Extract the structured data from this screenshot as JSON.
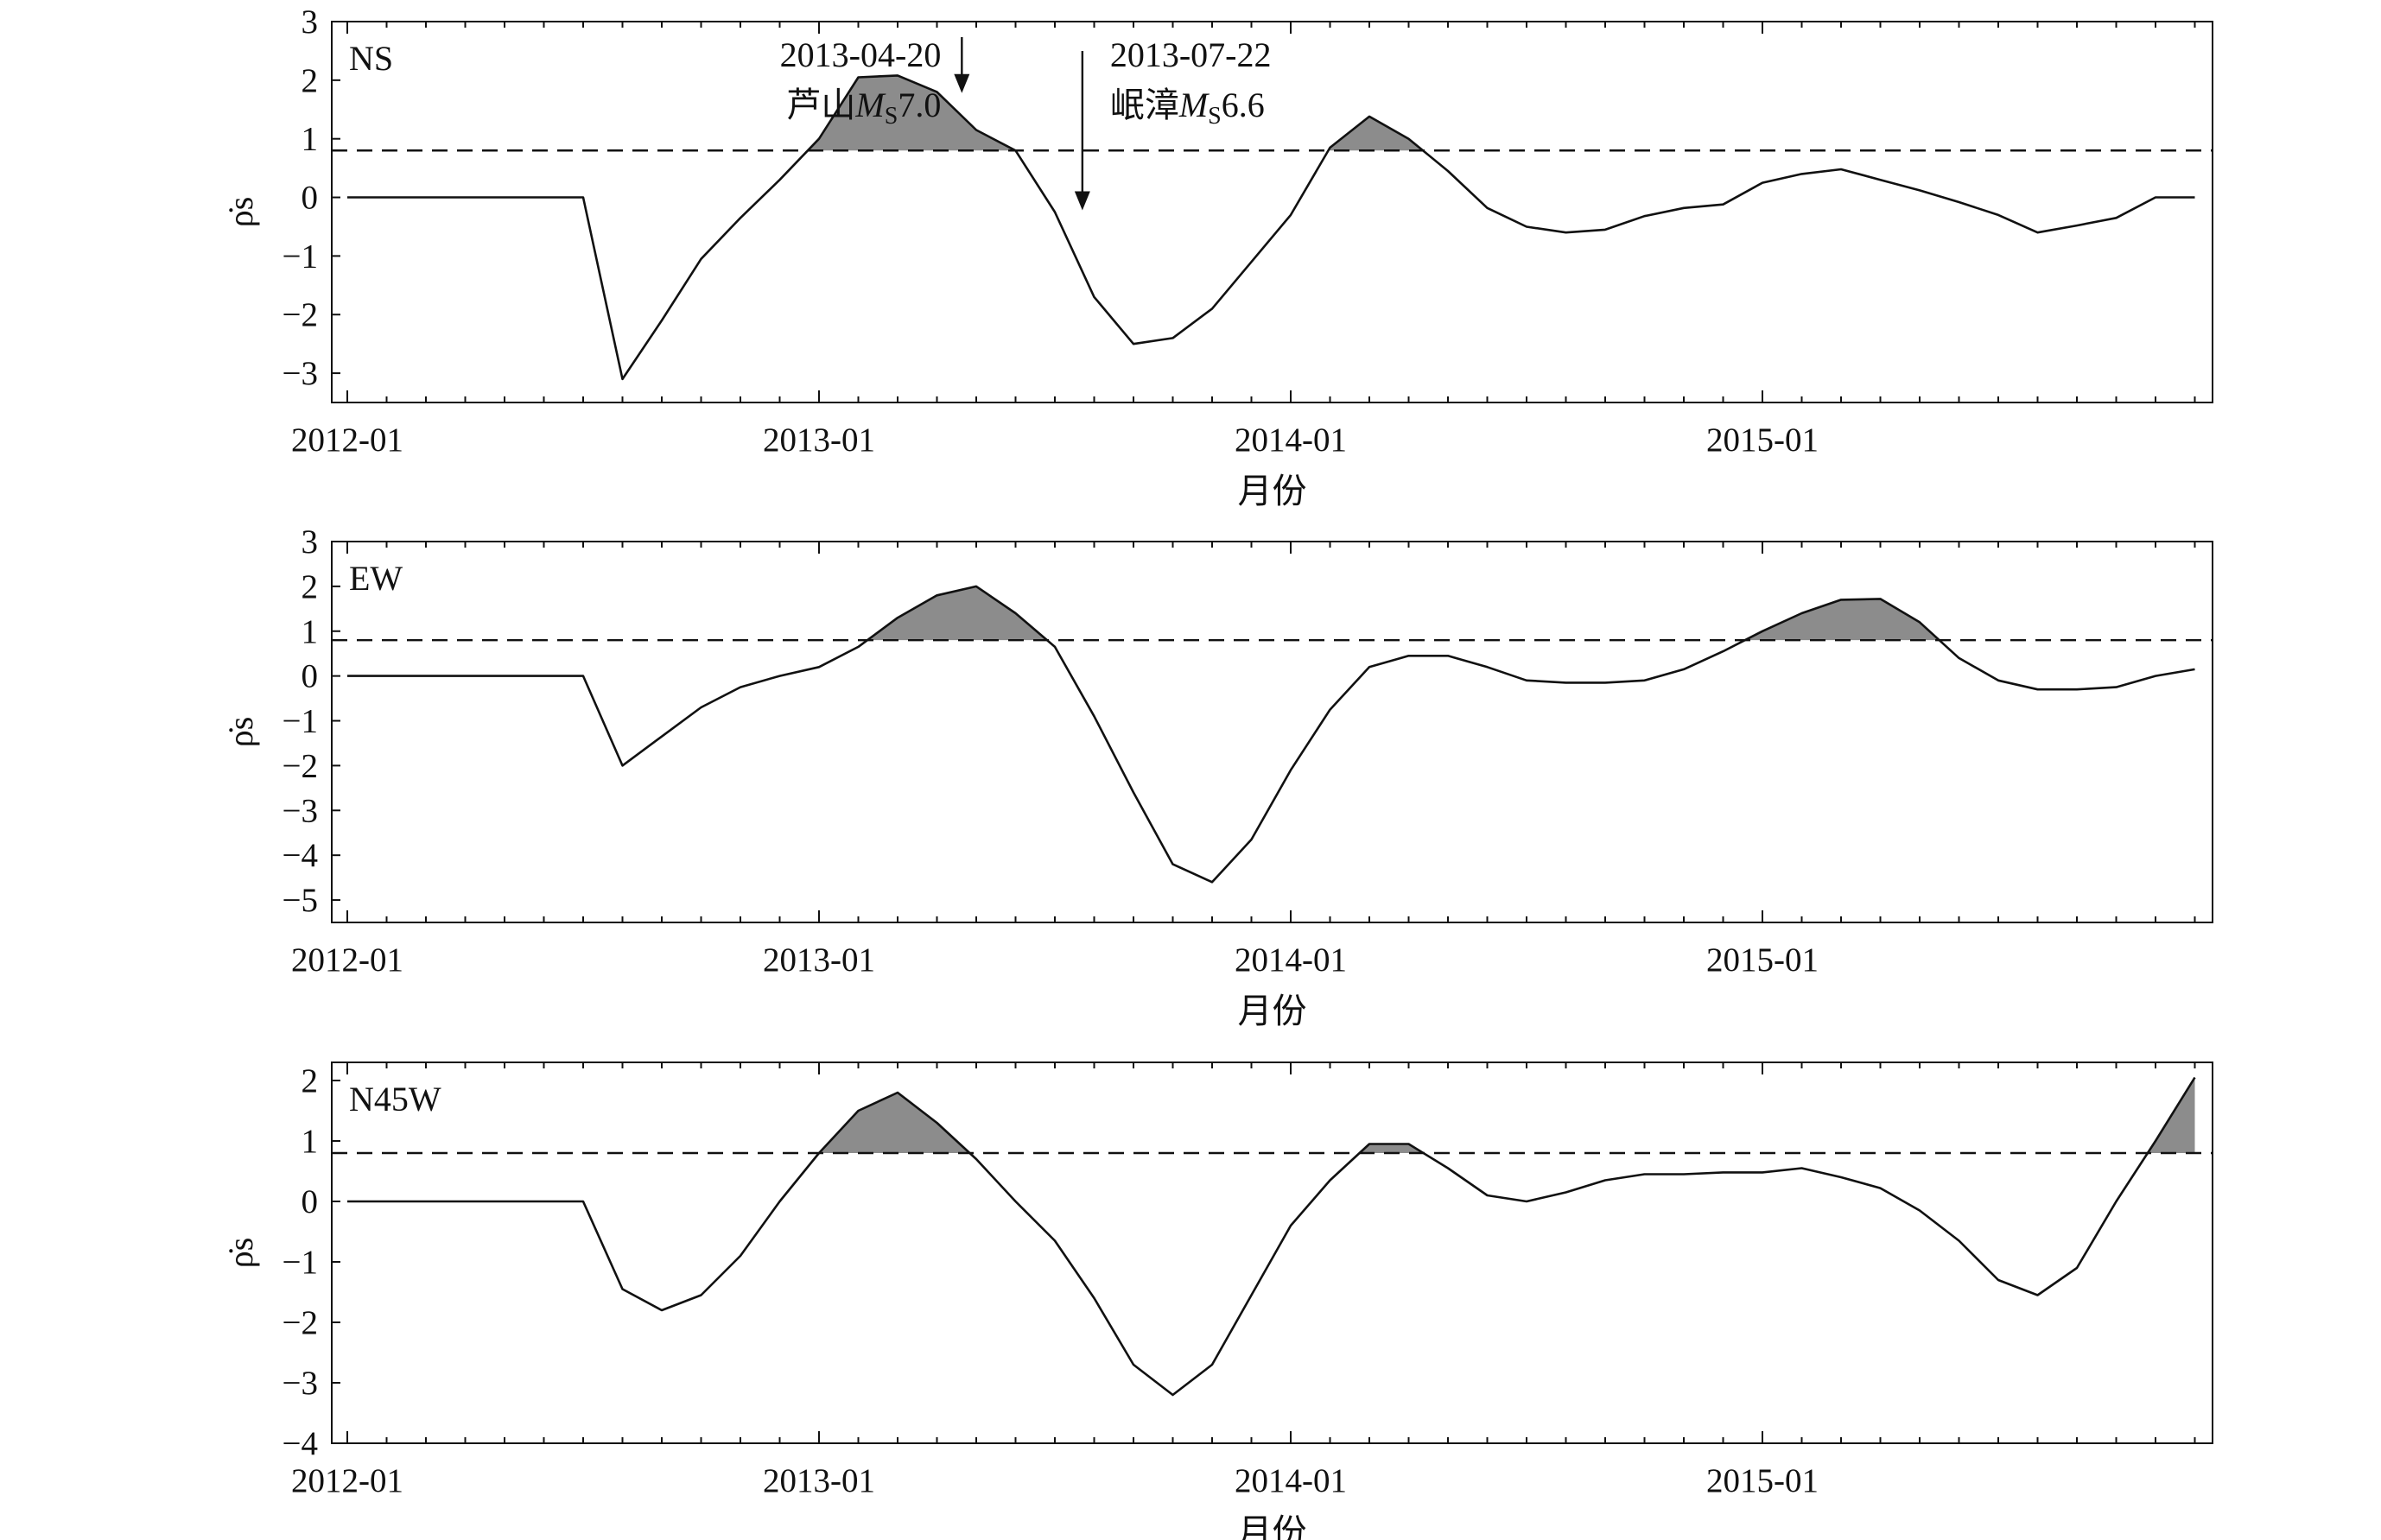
{
  "chart_data": [
    {
      "type": "line",
      "panel_label": "NS",
      "threshold": 0.8,
      "fill_above_threshold": true,
      "ylim": [
        -3.5,
        3.0
      ],
      "yticks": [
        -3,
        -2,
        -1,
        0,
        1,
        2,
        3
      ],
      "ylabel": "ρ̇s",
      "xlabel": "月份",
      "xticks": [
        "2012-01",
        "2013-01",
        "2014-01",
        "2015-01"
      ],
      "x": [
        "2012-01",
        "2012-02",
        "2012-03",
        "2012-04",
        "2012-05",
        "2012-06",
        "2012-07",
        "2012-08",
        "2012-09",
        "2012-10",
        "2012-11",
        "2012-12",
        "2013-01",
        "2013-02",
        "2013-03",
        "2013-04",
        "2013-05",
        "2013-06",
        "2013-07",
        "2013-08",
        "2013-09",
        "2013-10",
        "2013-11",
        "2013-12",
        "2014-01",
        "2014-02",
        "2014-03",
        "2014-04",
        "2014-05",
        "2014-06",
        "2014-07",
        "2014-08",
        "2014-09",
        "2014-10",
        "2014-11",
        "2014-12",
        "2015-01",
        "2015-02",
        "2015-03",
        "2015-04",
        "2015-05",
        "2015-06",
        "2015-07",
        "2015-08",
        "2015-09",
        "2015-10",
        "2015-11",
        "2015-12"
      ],
      "values": [
        0,
        0,
        0,
        0,
        0,
        0,
        0,
        -3.1,
        -2.1,
        -1.05,
        -0.35,
        0.3,
        1.0,
        2.05,
        2.08,
        1.8,
        1.15,
        0.8,
        -0.25,
        -1.7,
        -2.5,
        -2.4,
        -1.9,
        -1.1,
        -0.3,
        0.85,
        1.38,
        1.0,
        0.45,
        -0.18,
        -0.5,
        -0.6,
        -0.55,
        -0.32,
        -0.18,
        -0.12,
        0.25,
        0.4,
        0.48,
        0.3,
        0.12,
        -0.08,
        -0.3,
        -0.6,
        -0.48,
        -0.35,
        0.0,
        0.0
      ],
      "annotations": [
        {
          "line1": "2013-04-20",
          "line2_prefix": "芦山",
          "magnitude_symbol": "M",
          "magnitude_sub": "S",
          "magnitude_value": "7.0",
          "date": "2013-04-20",
          "y": 1.75
        },
        {
          "line1": "2013-07-22",
          "line2_prefix": "岷漳",
          "magnitude_symbol": "M",
          "magnitude_sub": "S",
          "magnitude_value": "6.6",
          "date": "2013-07-22",
          "y": -0.25
        }
      ]
    },
    {
      "type": "line",
      "panel_label": "EW",
      "threshold": 0.8,
      "fill_above_threshold": true,
      "ylim": [
        -5.5,
        3.0
      ],
      "yticks": [
        -5,
        -4,
        -3,
        -2,
        -1,
        0,
        1,
        2,
        3
      ],
      "ylabel": "ρ̇s",
      "xlabel": "月份",
      "xticks": [
        "2012-01",
        "2013-01",
        "2014-01",
        "2015-01"
      ],
      "x": [
        "2012-01",
        "2012-02",
        "2012-03",
        "2012-04",
        "2012-05",
        "2012-06",
        "2012-07",
        "2012-08",
        "2012-09",
        "2012-10",
        "2012-11",
        "2012-12",
        "2013-01",
        "2013-02",
        "2013-03",
        "2013-04",
        "2013-05",
        "2013-06",
        "2013-07",
        "2013-08",
        "2013-09",
        "2013-10",
        "2013-11",
        "2013-12",
        "2014-01",
        "2014-02",
        "2014-03",
        "2014-04",
        "2014-05",
        "2014-06",
        "2014-07",
        "2014-08",
        "2014-09",
        "2014-10",
        "2014-11",
        "2014-12",
        "2015-01",
        "2015-02",
        "2015-03",
        "2015-04",
        "2015-05",
        "2015-06",
        "2015-07",
        "2015-08",
        "2015-09",
        "2015-10",
        "2015-11",
        "2015-12"
      ],
      "values": [
        0,
        0,
        0,
        0,
        0,
        0,
        0,
        -2.0,
        -1.35,
        -0.7,
        -0.25,
        0.0,
        0.2,
        0.65,
        1.3,
        1.8,
        2.0,
        1.4,
        0.65,
        -0.9,
        -2.6,
        -4.2,
        -4.6,
        -3.65,
        -2.1,
        -0.75,
        0.2,
        0.45,
        0.45,
        0.2,
        -0.1,
        -0.15,
        -0.15,
        -0.1,
        0.15,
        0.55,
        1.0,
        1.4,
        1.7,
        1.72,
        1.2,
        0.4,
        -0.1,
        -0.3,
        -0.3,
        -0.25,
        0.0,
        0.15
      ]
    },
    {
      "type": "line",
      "panel_label": "N45W",
      "threshold": 0.8,
      "fill_above_threshold": true,
      "ylim": [
        -4.0,
        2.3
      ],
      "yticks": [
        -4,
        -3,
        -2,
        -1,
        0,
        1,
        2
      ],
      "ylabel": "ρ̇s",
      "xlabel": "月份",
      "xticks": [
        "2012-01",
        "2013-01",
        "2014-01",
        "2015-01"
      ],
      "x": [
        "2012-01",
        "2012-02",
        "2012-03",
        "2012-04",
        "2012-05",
        "2012-06",
        "2012-07",
        "2012-08",
        "2012-09",
        "2012-10",
        "2012-11",
        "2012-12",
        "2013-01",
        "2013-02",
        "2013-03",
        "2013-04",
        "2013-05",
        "2013-06",
        "2013-07",
        "2013-08",
        "2013-09",
        "2013-10",
        "2013-11",
        "2013-12",
        "2014-01",
        "2014-02",
        "2014-03",
        "2014-04",
        "2014-05",
        "2014-06",
        "2014-07",
        "2014-08",
        "2014-09",
        "2014-10",
        "2014-11",
        "2014-12",
        "2015-01",
        "2015-02",
        "2015-03",
        "2015-04",
        "2015-05",
        "2015-06",
        "2015-07",
        "2015-08",
        "2015-09",
        "2015-10",
        "2015-11",
        "2015-12"
      ],
      "values": [
        0,
        0,
        0,
        0,
        0,
        0,
        0,
        -1.45,
        -1.8,
        -1.55,
        -0.9,
        0.0,
        0.8,
        1.5,
        1.8,
        1.3,
        0.7,
        0.0,
        -0.65,
        -1.6,
        -2.7,
        -3.2,
        -2.7,
        -1.55,
        -0.4,
        0.35,
        0.95,
        0.95,
        0.55,
        0.1,
        0.0,
        0.15,
        0.35,
        0.45,
        0.45,
        0.48,
        0.48,
        0.55,
        0.4,
        0.22,
        -0.15,
        -0.65,
        -1.3,
        -1.55,
        -1.1,
        0.0,
        1.0,
        2.05
      ]
    }
  ]
}
